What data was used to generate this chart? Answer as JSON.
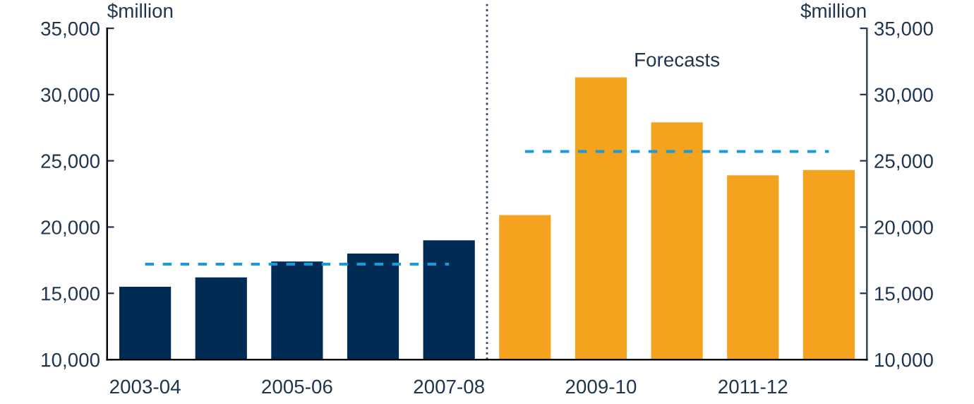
{
  "chart_data": {
    "type": "bar",
    "ylabel": "$million",
    "y2label": "$million",
    "categories": [
      "2003-04",
      null,
      "2005-06",
      null,
      "2007-08",
      null,
      "2009-10",
      null,
      "2011-12",
      null
    ],
    "series": [
      {
        "values": [
          15500,
          16200,
          17400,
          18000,
          19000,
          20900,
          31300,
          27900,
          23900,
          24300
        ],
        "colors": [
          "#002b54",
          "#002b54",
          "#002b54",
          "#002b54",
          "#002b54",
          "#f5a31e",
          "#f5a31e",
          "#f5a31e",
          "#f5a31e",
          "#f5a31e"
        ]
      },
      {
        "type": "line",
        "color": "#1a9ad6",
        "line_style": "dashed",
        "marker": "none",
        "values": [
          17200,
          17200,
          17200,
          17200,
          17200,
          null,
          null,
          null,
          null,
          null
        ]
      },
      {
        "type": "line",
        "color": "#1a9ad6",
        "line_style": "dashed",
        "marker": "none",
        "values": [
          null,
          null,
          null,
          null,
          null,
          25700,
          25700,
          25700,
          25700,
          25700
        ]
      }
    ],
    "ylim": [
      10000,
      35000
    ],
    "yticks": [
      {
        "value": 10000,
        "label": "10,000"
      },
      {
        "value": 15000,
        "label": "15,000"
      },
      {
        "value": 20000,
        "label": "20,000"
      },
      {
        "value": 25000,
        "label": "25,000"
      },
      {
        "value": 30000,
        "label": "30,000"
      },
      {
        "value": 35000,
        "label": "35,000"
      }
    ],
    "y2lim": [
      10000,
      35000
    ],
    "y2ticks": [
      {
        "value": 10000,
        "label": "10,000"
      },
      {
        "value": 15000,
        "label": "15,000"
      },
      {
        "value": 20000,
        "label": "20,000"
      },
      {
        "value": 25000,
        "label": "25,000"
      },
      {
        "value": 30000,
        "label": "30,000"
      },
      {
        "value": 35000,
        "label": "35,000"
      }
    ],
    "annotations": [
      "Forecasts"
    ],
    "grid": false,
    "legend": false
  }
}
